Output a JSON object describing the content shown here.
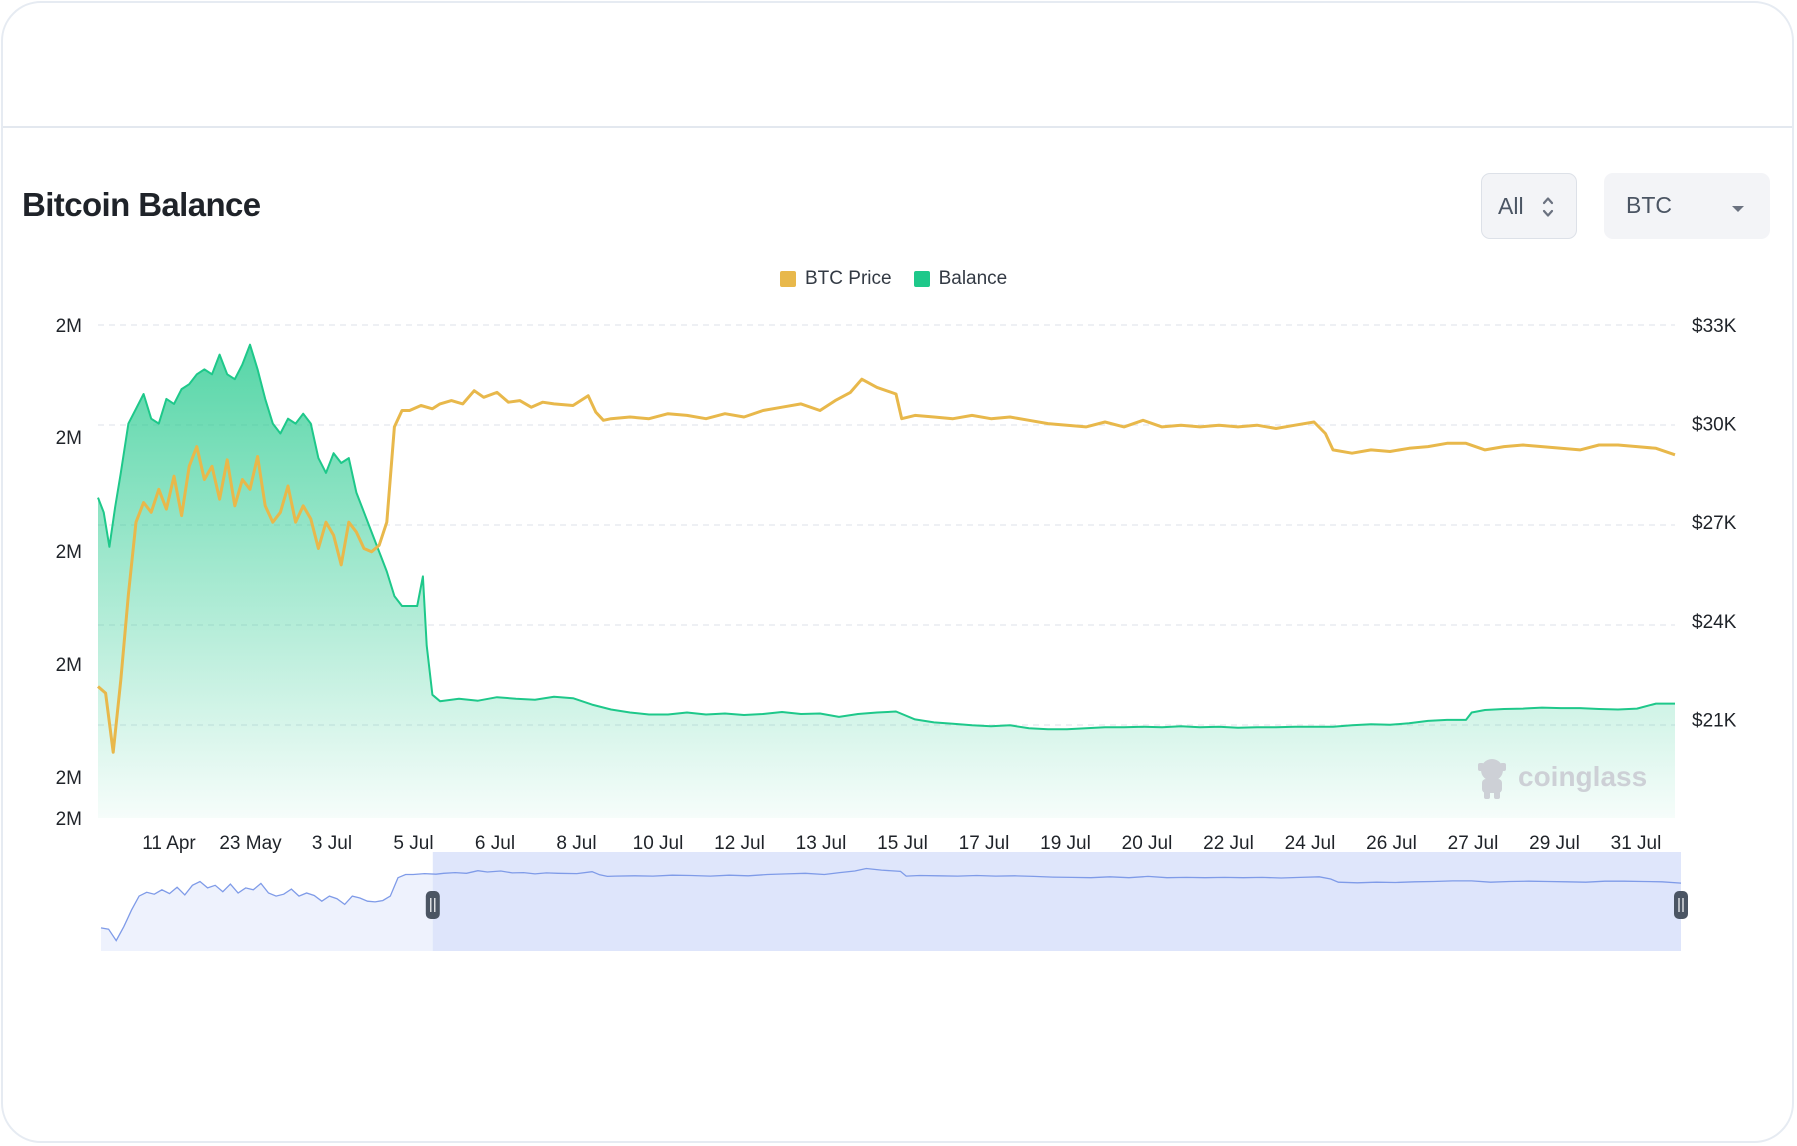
{
  "title": "Bitcoin Balance",
  "range_select": {
    "value": "All",
    "icon": "chevron-updown-icon"
  },
  "coin_select": {
    "value": "BTC",
    "icon": "caret-down-icon"
  },
  "watermark": "coinglass",
  "colors": {
    "price": "#e8b84b",
    "balance": "#1ec88a",
    "grid": "#e9ecf1",
    "navigator_fill": "#dbe3fb",
    "navigator_line": "#7f9be8"
  },
  "chart_data": {
    "type": "line",
    "title": "",
    "legend": [
      "BTC Price",
      "Balance"
    ],
    "legend_position": "top-center",
    "grid": true,
    "x_tick_labels": [
      "11 Apr",
      "23 May",
      "3 Jul",
      "5 Jul",
      "6 Jul",
      "8 Jul",
      "10 Jul",
      "12 Jul",
      "13 Jul",
      "15 Jul",
      "17 Jul",
      "19 Jul",
      "20 Jul",
      "22 Jul",
      "24 Jul",
      "26 Jul",
      "27 Jul",
      "29 Jul",
      "31 Jul"
    ],
    "y_left_tick_labels": [
      "2M",
      "2M",
      "2M",
      "2M",
      "2M",
      "2M"
    ],
    "y_right_tick_labels": [
      "$33K",
      "$30K",
      "$27K",
      "$24K",
      "$21K"
    ],
    "y_right_range": [
      18000,
      33000
    ],
    "balance_scale": "approx. relative level, left axis ticks all print 2M",
    "series": [
      {
        "name": "BTC Price",
        "axis": "right",
        "color": "#e8b84b",
        "points": [
          [
            0,
            22000
          ],
          [
            0.4,
            21800
          ],
          [
            0.8,
            20000
          ],
          [
            1.2,
            22200
          ],
          [
            1.6,
            24800
          ],
          [
            2.0,
            27000
          ],
          [
            2.4,
            27600
          ],
          [
            2.8,
            27300
          ],
          [
            3.2,
            28000
          ],
          [
            3.6,
            27400
          ],
          [
            4.0,
            28400
          ],
          [
            4.4,
            27200
          ],
          [
            4.8,
            28700
          ],
          [
            5.2,
            29300
          ],
          [
            5.6,
            28300
          ],
          [
            6.0,
            28700
          ],
          [
            6.4,
            27700
          ],
          [
            6.8,
            28900
          ],
          [
            7.2,
            27500
          ],
          [
            7.6,
            28300
          ],
          [
            8.0,
            28000
          ],
          [
            8.4,
            29000
          ],
          [
            8.8,
            27500
          ],
          [
            9.2,
            27000
          ],
          [
            9.6,
            27300
          ],
          [
            10.0,
            28100
          ],
          [
            10.4,
            27000
          ],
          [
            10.8,
            27500
          ],
          [
            11.2,
            27100
          ],
          [
            11.6,
            26200
          ],
          [
            12.0,
            27000
          ],
          [
            12.4,
            26600
          ],
          [
            12.8,
            25700
          ],
          [
            13.2,
            27000
          ],
          [
            13.6,
            26700
          ],
          [
            14.0,
            26200
          ],
          [
            14.4,
            26100
          ],
          [
            14.8,
            26300
          ],
          [
            15.2,
            27000
          ],
          [
            15.6,
            29900
          ],
          [
            16.0,
            30400
          ],
          [
            16.4,
            30400
          ],
          [
            17.0,
            30550
          ],
          [
            17.6,
            30450
          ],
          [
            18.0,
            30600
          ],
          [
            18.6,
            30700
          ],
          [
            19.2,
            30600
          ],
          [
            19.8,
            31000
          ],
          [
            20.3,
            30800
          ],
          [
            21.0,
            30950
          ],
          [
            21.6,
            30650
          ],
          [
            22.2,
            30700
          ],
          [
            22.8,
            30500
          ],
          [
            23.4,
            30650
          ],
          [
            24.0,
            30600
          ],
          [
            25.0,
            30550
          ],
          [
            25.8,
            30850
          ],
          [
            26.2,
            30350
          ],
          [
            26.6,
            30100
          ],
          [
            27.0,
            30150
          ],
          [
            28.0,
            30200
          ],
          [
            29.0,
            30150
          ],
          [
            30.0,
            30300
          ],
          [
            31.0,
            30250
          ],
          [
            32.0,
            30150
          ],
          [
            33.0,
            30300
          ],
          [
            34.0,
            30200
          ],
          [
            35.0,
            30400
          ],
          [
            36.0,
            30500
          ],
          [
            37.0,
            30600
          ],
          [
            38.0,
            30400
          ],
          [
            38.8,
            30700
          ],
          [
            39.6,
            30950
          ],
          [
            40.2,
            31350
          ],
          [
            41.0,
            31100
          ],
          [
            42.0,
            30900
          ],
          [
            42.3,
            30150
          ],
          [
            43.0,
            30250
          ],
          [
            44.0,
            30200
          ],
          [
            45.0,
            30150
          ],
          [
            46.0,
            30250
          ],
          [
            47.0,
            30150
          ],
          [
            48.0,
            30200
          ],
          [
            49.0,
            30100
          ],
          [
            50.0,
            30000
          ],
          [
            51.0,
            29950
          ],
          [
            52.0,
            29900
          ],
          [
            53.0,
            30050
          ],
          [
            54.0,
            29900
          ],
          [
            55.0,
            30100
          ],
          [
            56.0,
            29900
          ],
          [
            57.0,
            29950
          ],
          [
            58.0,
            29900
          ],
          [
            59.0,
            29950
          ],
          [
            60.0,
            29900
          ],
          [
            61.0,
            29950
          ],
          [
            62.0,
            29850
          ],
          [
            63.0,
            29950
          ],
          [
            64.0,
            30050
          ],
          [
            64.6,
            29700
          ],
          [
            65.0,
            29200
          ],
          [
            66.0,
            29100
          ],
          [
            67.0,
            29200
          ],
          [
            68.0,
            29150
          ],
          [
            69.0,
            29250
          ],
          [
            70.0,
            29300
          ],
          [
            71.0,
            29400
          ],
          [
            72.0,
            29400
          ],
          [
            73.0,
            29200
          ],
          [
            74.0,
            29300
          ],
          [
            75.0,
            29350
          ],
          [
            76.0,
            29300
          ],
          [
            77.0,
            29250
          ],
          [
            78.0,
            29200
          ],
          [
            79.0,
            29350
          ],
          [
            80.0,
            29350
          ],
          [
            81.0,
            29300
          ],
          [
            82.0,
            29250
          ],
          [
            83.0,
            29050
          ]
        ]
      },
      {
        "name": "Balance",
        "axis": "left",
        "color": "#1ec88a",
        "points": [
          [
            0,
            0.65
          ],
          [
            0.3,
            0.62
          ],
          [
            0.6,
            0.55
          ],
          [
            0.9,
            0.63
          ],
          [
            1.2,
            0.7
          ],
          [
            1.6,
            0.8
          ],
          [
            2.0,
            0.83
          ],
          [
            2.4,
            0.86
          ],
          [
            2.8,
            0.81
          ],
          [
            3.2,
            0.8
          ],
          [
            3.6,
            0.85
          ],
          [
            4.0,
            0.84
          ],
          [
            4.4,
            0.87
          ],
          [
            4.8,
            0.88
          ],
          [
            5.2,
            0.9
          ],
          [
            5.6,
            0.91
          ],
          [
            6.0,
            0.9
          ],
          [
            6.4,
            0.94
          ],
          [
            6.8,
            0.9
          ],
          [
            7.2,
            0.89
          ],
          [
            7.6,
            0.92
          ],
          [
            8.0,
            0.96
          ],
          [
            8.4,
            0.91
          ],
          [
            8.8,
            0.85
          ],
          [
            9.2,
            0.8
          ],
          [
            9.6,
            0.78
          ],
          [
            10.0,
            0.81
          ],
          [
            10.4,
            0.8
          ],
          [
            10.8,
            0.82
          ],
          [
            11.2,
            0.8
          ],
          [
            11.6,
            0.73
          ],
          [
            12.0,
            0.7
          ],
          [
            12.4,
            0.74
          ],
          [
            12.8,
            0.72
          ],
          [
            13.2,
            0.73
          ],
          [
            13.6,
            0.66
          ],
          [
            14.0,
            0.62
          ],
          [
            14.4,
            0.58
          ],
          [
            14.8,
            0.54
          ],
          [
            15.2,
            0.5
          ],
          [
            15.6,
            0.45
          ],
          [
            16.0,
            0.43
          ],
          [
            16.4,
            0.43
          ],
          [
            16.8,
            0.43
          ],
          [
            17.1,
            0.49
          ],
          [
            17.3,
            0.35
          ],
          [
            17.6,
            0.25
          ],
          [
            18.0,
            0.237
          ],
          [
            19.0,
            0.242
          ],
          [
            20.0,
            0.238
          ],
          [
            21.0,
            0.245
          ],
          [
            22.0,
            0.242
          ],
          [
            23.0,
            0.24
          ],
          [
            24.0,
            0.246
          ],
          [
            25.0,
            0.243
          ],
          [
            26.0,
            0.23
          ],
          [
            27.0,
            0.22
          ],
          [
            28.0,
            0.214
          ],
          [
            29.0,
            0.21
          ],
          [
            30.0,
            0.21
          ],
          [
            31.0,
            0.214
          ],
          [
            32.0,
            0.21
          ],
          [
            33.0,
            0.212
          ],
          [
            34.0,
            0.209
          ],
          [
            35.0,
            0.211
          ],
          [
            36.0,
            0.215
          ],
          [
            37.0,
            0.211
          ],
          [
            38.0,
            0.212
          ],
          [
            39.0,
            0.205
          ],
          [
            40.0,
            0.211
          ],
          [
            41.0,
            0.214
          ],
          [
            42.0,
            0.216
          ],
          [
            43.0,
            0.2
          ],
          [
            44.0,
            0.194
          ],
          [
            45.0,
            0.191
          ],
          [
            46.0,
            0.188
          ],
          [
            47.0,
            0.186
          ],
          [
            48.0,
            0.188
          ],
          [
            49.0,
            0.182
          ],
          [
            50.0,
            0.18
          ],
          [
            51.0,
            0.18
          ],
          [
            52.0,
            0.182
          ],
          [
            53.0,
            0.184
          ],
          [
            54.0,
            0.184
          ],
          [
            55.0,
            0.185
          ],
          [
            56.0,
            0.184
          ],
          [
            57.0,
            0.186
          ],
          [
            58.0,
            0.184
          ],
          [
            59.0,
            0.185
          ],
          [
            60.0,
            0.183
          ],
          [
            61.0,
            0.184
          ],
          [
            62.0,
            0.184
          ],
          [
            63.0,
            0.185
          ],
          [
            64.0,
            0.185
          ],
          [
            65.0,
            0.185
          ],
          [
            66.0,
            0.188
          ],
          [
            67.0,
            0.19
          ],
          [
            68.0,
            0.189
          ],
          [
            69.0,
            0.192
          ],
          [
            70.0,
            0.197
          ],
          [
            71.0,
            0.199
          ],
          [
            71.5,
            0.199
          ],
          [
            72.0,
            0.199
          ],
          [
            72.3,
            0.214
          ],
          [
            73.0,
            0.219
          ],
          [
            74.0,
            0.221
          ],
          [
            75.0,
            0.222
          ],
          [
            76.0,
            0.224
          ],
          [
            77.0,
            0.223
          ],
          [
            78.0,
            0.223
          ],
          [
            79.0,
            0.221
          ],
          [
            80.0,
            0.22
          ],
          [
            81.0,
            0.222
          ],
          [
            82.0,
            0.232
          ],
          [
            83.0,
            0.232
          ]
        ]
      }
    ],
    "navigator": {
      "selected_start": 0.21,
      "selected_end": 1.0
    }
  }
}
